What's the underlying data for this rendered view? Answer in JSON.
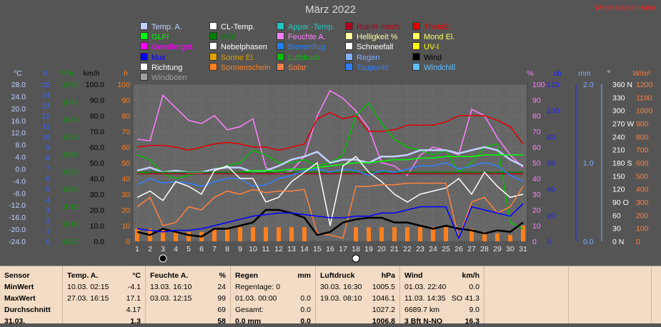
{
  "title": "März 2022",
  "weblink": "Wetterstation Hahn",
  "legend": [
    {
      "label": "Temp. A.",
      "color": "#c0d0ff"
    },
    {
      "label": "CL-Temp.",
      "color": "#ffffff"
    },
    {
      "label": "Appar.-Temp.",
      "color": "#20c8c0"
    },
    {
      "label": "RainR mm/h",
      "color": "#b00020"
    },
    {
      "label": "ThetaE",
      "color": "#e00000"
    },
    {
      "label": "GLFI",
      "color": "#00ff00"
    },
    {
      "label": "WBI",
      "color": "#008000"
    },
    {
      "label": "Feuchte A.",
      "color": "#ff80ff"
    },
    {
      "label": "Helligkeit %",
      "color": "#ffffa0"
    },
    {
      "label": "Mond El.",
      "color": "#ffff60"
    },
    {
      "label": "Gewitterget.",
      "color": "#ff00ff"
    },
    {
      "label": "Nebelphasen",
      "color": "#ffffff"
    },
    {
      "label": "Bienenflug",
      "color": "#2080ff"
    },
    {
      "label": "Schneefall",
      "color": "#ffffff"
    },
    {
      "label": "UV-I",
      "color": "#ffff00"
    },
    {
      "label": "klux",
      "color": "#0000ff"
    },
    {
      "label": "Sonne El.",
      "color": "#e0a000"
    },
    {
      "label": "Luftdruck",
      "color": "#00c000"
    },
    {
      "label": "Regen",
      "color": "#80b0ff"
    },
    {
      "label": "Wind",
      "color": "#000000"
    },
    {
      "label": "Richtung",
      "color": "#ffffff"
    },
    {
      "label": "Sonnenschein",
      "color": "#ff8020"
    },
    {
      "label": "Solar",
      "color": "#ff8040"
    },
    {
      "label": "Taupunkt",
      "color": "#3080ff"
    },
    {
      "label": "Windchill",
      "color": "#60c0ff"
    },
    {
      "label": "Windböen",
      "color": "#a0a0a0"
    }
  ],
  "axes": {
    "temp": {
      "unit": "°C",
      "ticks": [
        "28.0",
        "24.0",
        "20.0",
        "16.0",
        "12.0",
        "8.0",
        "4.0",
        "0.0",
        "-4.0",
        "-8.0",
        "-12.0",
        "-16.0",
        "-20.0",
        "-24.0"
      ],
      "color": "#c0d0ff"
    },
    "index": {
      "unit": "II",
      "ticks": [
        "15",
        "14",
        "13",
        "12",
        "11",
        "10",
        "9",
        "8",
        "7",
        "6",
        "5",
        "4",
        "3",
        "2",
        "1",
        "0"
      ],
      "color": "#4060ff"
    },
    "pressure": {
      "unit": "hPa",
      "ticks": [
        "1050",
        "1045",
        "1040",
        "1035",
        "1030",
        "1025",
        "1020",
        "1015",
        "1010",
        "1005"
      ],
      "color": "#00a000"
    },
    "wind": {
      "unit": "km/h",
      "ticks": [
        "100.0",
        "90.0",
        "80.0",
        "70.0",
        "60.0",
        "50.0",
        "40.0",
        "30.0",
        "20.0",
        "10.0",
        "0.0"
      ],
      "color": "#000000"
    },
    "hours": {
      "unit": "h",
      "ticks": [
        "100",
        "90",
        "80",
        "70",
        "60",
        "50",
        "40",
        "30",
        "20",
        "10",
        "0"
      ],
      "color": "#ff8020"
    },
    "humidity": {
      "unit": "%",
      "ticks": [
        "100",
        "90",
        "80",
        "70",
        "60",
        "50",
        "40",
        "30",
        "20",
        "10",
        "0"
      ],
      "color": "#ff80ff"
    },
    "cb": {
      "unit": "cb",
      "ticks": [
        "120",
        "100",
        "80",
        "60",
        "40",
        "20",
        "0"
      ],
      "color": "#2020ff"
    },
    "rain": {
      "unit": "mm",
      "ticks": [
        "2.0",
        "1.0",
        "0.0"
      ],
      "color": "#80b0ff"
    },
    "direction": {
      "unit": "°",
      "ticks": [
        "360 N",
        "330",
        "300",
        "270 W",
        "240",
        "210",
        "180 S",
        "150",
        "120",
        "90  O",
        "60",
        "30",
        "0    N"
      ],
      "color": "#ffffff"
    },
    "solar": {
      "unit": "W/m²",
      "ticks": [
        "1200",
        "1100",
        "1000",
        "900",
        "800",
        "700",
        "600",
        "500",
        "400",
        "300",
        "200",
        "100",
        "0"
      ],
      "color": "#ff8040"
    }
  },
  "chart_data": {
    "type": "line",
    "x": [
      1,
      2,
      3,
      4,
      5,
      6,
      7,
      8,
      9,
      10,
      11,
      12,
      13,
      14,
      15,
      16,
      17,
      18,
      19,
      20,
      21,
      22,
      23,
      24,
      25,
      26,
      27,
      28,
      29,
      30,
      31
    ],
    "series": [
      {
        "name": "Feuchte A.",
        "color": "#ff80ff",
        "axis": "humidity",
        "values": [
          65,
          64,
          93,
          85,
          77,
          75,
          80,
          71,
          73,
          78,
          47,
          43,
          45,
          54,
          80,
          96,
          91,
          83,
          72,
          50,
          48,
          42,
          55,
          60,
          58,
          55,
          84,
          80,
          66,
          55,
          47
        ]
      },
      {
        "name": "ThetaE",
        "color": "#e00000",
        "axis": "humidity",
        "values": [
          60,
          61,
          61,
          60,
          58,
          60,
          62,
          63,
          62,
          60,
          60,
          58,
          60,
          62,
          78,
          82,
          78,
          80,
          70,
          70,
          71,
          74,
          74,
          74,
          76,
          80,
          80,
          80,
          77,
          73,
          62
        ]
      },
      {
        "name": "Luftdruck",
        "color": "#00c000",
        "axis": "humidity",
        "values": [
          55,
          52,
          43,
          40,
          42,
          44,
          46,
          48,
          50,
          58,
          55,
          50,
          50,
          52,
          48,
          50,
          55,
          80,
          88,
          75,
          65,
          60,
          58,
          55,
          58,
          44,
          50,
          60,
          62,
          12,
          8
        ]
      },
      {
        "name": "Temp. A.",
        "color": "#c0d0ff",
        "axis": "humidity",
        "values": [
          45,
          47,
          44,
          45,
          44,
          44,
          46,
          47,
          47,
          44,
          45,
          48,
          52,
          54,
          57,
          50,
          52,
          52,
          50,
          54,
          54,
          55,
          58,
          58,
          58,
          56,
          58,
          60,
          58,
          52,
          48
        ]
      },
      {
        "name": "GLFI",
        "color": "#00ff00",
        "axis": "humidity",
        "values": [
          43,
          44,
          44,
          44,
          44,
          44,
          44,
          44,
          44,
          45,
          45,
          45,
          46,
          46,
          47,
          48,
          49,
          50,
          50,
          51,
          52,
          52,
          53,
          53,
          54,
          54,
          54,
          55,
          55,
          55,
          55
        ]
      },
      {
        "name": "WBI",
        "color": "#008000",
        "axis": "humidity",
        "values": [
          44,
          44,
          44,
          44,
          44,
          44,
          44,
          44,
          44,
          44,
          44,
          44,
          44,
          44,
          44,
          44,
          44,
          44,
          44,
          44,
          44,
          44,
          44,
          44,
          44,
          44,
          44,
          44,
          44,
          44,
          44
        ]
      },
      {
        "name": "RainR mm/h",
        "color": "#b00020",
        "axis": "humidity",
        "values": [
          43,
          43,
          43,
          43,
          43,
          43,
          43,
          43,
          43,
          43,
          43,
          43,
          43,
          43,
          43,
          43,
          43,
          43,
          43,
          43,
          43,
          43,
          43,
          43,
          43,
          43,
          43,
          43,
          43,
          43,
          43
        ]
      },
      {
        "name": "Taupunkt",
        "color": "#3080ff",
        "axis": "humidity",
        "values": [
          36,
          40,
          37,
          38,
          37,
          35,
          38,
          40,
          40,
          35,
          36,
          40,
          42,
          45,
          46,
          44,
          46,
          45,
          42,
          45,
          44,
          46,
          48,
          48,
          50,
          46,
          48,
          50,
          48,
          42,
          38
        ]
      },
      {
        "name": "CL-Temp.",
        "color": "#ffffff",
        "axis": "humidity",
        "values": [
          28,
          32,
          26,
          38,
          35,
          30,
          45,
          48,
          40,
          40,
          25,
          28,
          38,
          44,
          50,
          10,
          48,
          54,
          44,
          38,
          30,
          25,
          30,
          32,
          34,
          40,
          30,
          44,
          35,
          28,
          30
        ]
      },
      {
        "name": "Solar",
        "color": "#ff8040",
        "axis": "humidity",
        "values": [
          22,
          28,
          10,
          12,
          22,
          20,
          28,
          32,
          30,
          33,
          31,
          32,
          32,
          33,
          5,
          4,
          2,
          35,
          35,
          36,
          36,
          37,
          37,
          37,
          37,
          2,
          25,
          28,
          18,
          22,
          35
        ]
      },
      {
        "name": "Wind",
        "color": "#000000",
        "axis": "humidity",
        "values": [
          6,
          4,
          8,
          6,
          4,
          3,
          8,
          8,
          10,
          12,
          20,
          20,
          18,
          15,
          4,
          6,
          12,
          14,
          15,
          15,
          12,
          12,
          10,
          8,
          10,
          8,
          7,
          5,
          7,
          6,
          12
        ]
      },
      {
        "name": "Sonnenschein",
        "color": "#ff8020",
        "axis": "humidity",
        "type": "bar",
        "values": [
          8,
          8,
          8,
          7,
          6,
          6,
          8,
          8,
          9,
          9,
          9,
          9,
          9,
          9,
          0,
          0,
          0,
          9,
          9,
          9,
          9,
          9,
          9,
          9,
          9,
          0,
          8,
          6,
          5,
          4,
          10
        ]
      },
      {
        "name": "klux",
        "color": "#0000ff",
        "axis": "humidity",
        "values": [
          8,
          7,
          6,
          7,
          7,
          8,
          10,
          12,
          14,
          16,
          17,
          18,
          18,
          17,
          16,
          15,
          15,
          16,
          16,
          18,
          18,
          20,
          22,
          22,
          22,
          2,
          22,
          20,
          18,
          16,
          24
        ]
      }
    ]
  },
  "table": {
    "columns": [
      {
        "rows": [
          [
            "Sensor",
            "",
            ""
          ],
          [
            "MinWert",
            "",
            ""
          ],
          [
            "MaxWert",
            "",
            ""
          ],
          [
            "Durchschnitt",
            "",
            ""
          ],
          [
            "31.03.",
            "",
            ""
          ]
        ]
      },
      {
        "rows": [
          [
            "Temp. A.",
            "",
            "°C"
          ],
          [
            "10.03.  02:15",
            "",
            "-4.1"
          ],
          [
            "27.03.  16:15",
            "",
            "17.1"
          ],
          [
            "",
            "",
            "4.17"
          ],
          [
            "",
            "",
            "1.3"
          ]
        ]
      },
      {
        "rows": [
          [
            "Feuchte A.",
            "",
            "%"
          ],
          [
            "13.03.  16:10",
            "",
            "24"
          ],
          [
            "03.03.  12:15",
            "",
            "99"
          ],
          [
            "",
            "",
            "69"
          ],
          [
            "",
            "",
            "58"
          ]
        ]
      },
      {
        "rows": [
          [
            "Regen",
            "",
            "mm"
          ],
          [
            "Regentage: 0",
            "",
            ""
          ],
          [
            "01.03.  00:00",
            "",
            "0.0"
          ],
          [
            "Gesamt:",
            "",
            "0.0"
          ],
          [
            "0.0 mm",
            "",
            "0.0"
          ]
        ]
      },
      {
        "rows": [
          [
            "Luftdruck",
            "",
            "hPa"
          ],
          [
            "30.03.  16:30",
            "",
            "1005.5"
          ],
          [
            "19.03.  08:10",
            "",
            "1046.1"
          ],
          [
            "",
            "",
            "1027.2"
          ],
          [
            "",
            "",
            "1006.8"
          ]
        ]
      },
      {
        "rows": [
          [
            "Wind",
            "",
            "km/h"
          ],
          [
            "01.03.  22:40",
            "",
            "0.0"
          ],
          [
            "11.03.  14:35",
            "SO",
            "41.3"
          ],
          [
            "6689.7 km",
            "",
            "9.0"
          ],
          [
            "3 Bft N-NO",
            "",
            "16.3"
          ]
        ]
      }
    ]
  }
}
